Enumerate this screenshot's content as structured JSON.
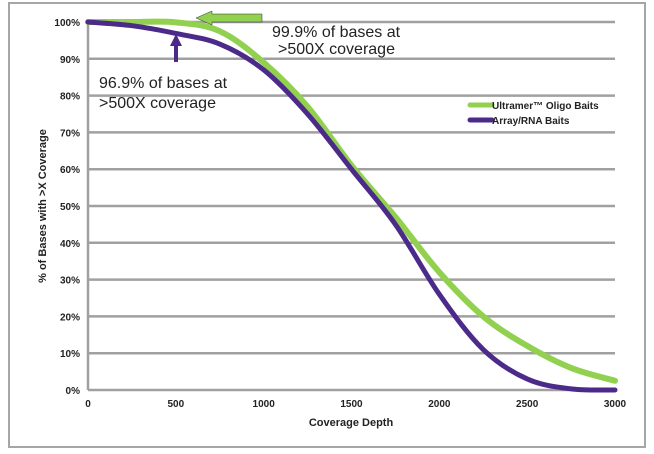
{
  "chart_data": {
    "type": "line",
    "title": "",
    "xlabel": "Coverage Depth",
    "ylabel": "% of Bases with >X Coverage",
    "xlim": [
      0,
      3000
    ],
    "ylim": [
      0,
      100
    ],
    "xticks": [
      0,
      500,
      1000,
      1500,
      2000,
      2500,
      3000
    ],
    "yticks": [
      "0%",
      "10%",
      "20%",
      "30%",
      "40%",
      "50%",
      "60%",
      "70%",
      "80%",
      "90%",
      "100%"
    ],
    "grid": "horizontal",
    "legend_position": "right",
    "x": [
      0,
      250,
      500,
      750,
      1000,
      1250,
      1500,
      1750,
      2000,
      2250,
      2500,
      2750,
      3000
    ],
    "series": [
      {
        "name": "Ultramer™ Oligo Baits",
        "color": "#92d050",
        "values": [
          100,
          100,
          99.9,
          97.5,
          89,
          77,
          61,
          47,
          32,
          20,
          12,
          6,
          2.5
        ]
      },
      {
        "name": "Array/RNA Baits",
        "color": "#4b2a8a",
        "values": [
          100,
          99,
          96.9,
          94,
          87,
          75,
          60,
          45,
          26,
          11,
          3,
          0.3,
          0
        ]
      }
    ],
    "annotations": [
      {
        "line1": "99.9% of bases at",
        "line2": ">500X coverage",
        "series": 0,
        "x": 500
      },
      {
        "line1": "96.9% of bases at",
        "line2": ">500X coverage",
        "series": 1,
        "x": 500
      }
    ]
  }
}
